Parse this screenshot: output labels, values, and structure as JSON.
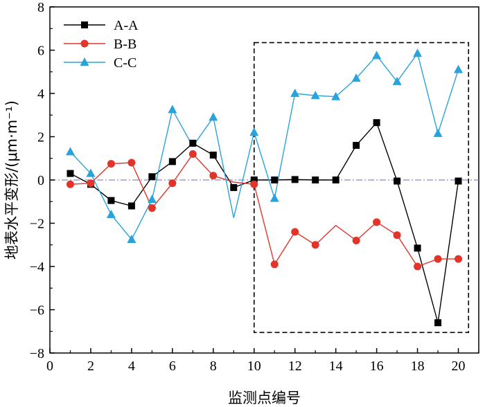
{
  "chart_data": {
    "type": "line",
    "xlabel": "监测点编号",
    "ylabel": "地表水平变形/(μm·m⁻¹)",
    "xlim": [
      0,
      21
    ],
    "ylim": [
      -8,
      8
    ],
    "xticks": [
      0,
      2,
      4,
      6,
      8,
      10,
      12,
      14,
      16,
      18,
      20
    ],
    "yticks": [
      -8,
      -6,
      -4,
      -2,
      0,
      2,
      4,
      6,
      8
    ],
    "xtick_labels": [
      "0",
      "2",
      "4",
      "6",
      "8",
      "10",
      "12",
      "14",
      "16",
      "18",
      "20"
    ],
    "ytick_labels": [
      "−8",
      "−6",
      "−4",
      "−2",
      "0",
      "2",
      "4",
      "6",
      "8"
    ],
    "grid": false,
    "legend_position": "top-left",
    "reference_line": {
      "y": 0,
      "style": "dash-dot",
      "color": "#8888cc"
    },
    "highlight_box": {
      "x": [
        10,
        20.5
      ],
      "y": [
        -7.05,
        6.35
      ],
      "style": "dashed"
    },
    "series": [
      {
        "name": "A-A",
        "color": "#000000",
        "marker": "square",
        "x": [
          1,
          2,
          3,
          4,
          5,
          6,
          7,
          8,
          9,
          10,
          11,
          12,
          13,
          14,
          15,
          16,
          17,
          18,
          19,
          20
        ],
        "y": [
          0.3,
          -0.2,
          -0.95,
          -1.2,
          0.15,
          0.85,
          1.7,
          1.15,
          -0.35,
          0.0,
          0.0,
          0.02,
          0.0,
          0.0,
          1.6,
          2.65,
          -0.05,
          -3.15,
          -6.6,
          -0.05
        ]
      },
      {
        "name": "B-B",
        "color": "#e3342a",
        "marker": "circle",
        "x": [
          1,
          2,
          3,
          4,
          5,
          6,
          7,
          8,
          9,
          10,
          11,
          12,
          13,
          14,
          15,
          16,
          17,
          18,
          19,
          20
        ],
        "y": [
          -0.2,
          -0.15,
          0.75,
          0.8,
          -1.3,
          -0.15,
          1.2,
          0.2,
          -0.1,
          -0.2,
          -3.9,
          -2.4,
          -3.0,
          -2.1,
          -2.8,
          -1.95,
          -2.55,
          -4.0,
          -3.65,
          -3.65
        ],
        "marker_hidden": [
          false,
          false,
          false,
          false,
          false,
          false,
          false,
          false,
          true,
          false,
          false,
          false,
          false,
          true,
          false,
          false,
          false,
          false,
          false,
          false
        ]
      },
      {
        "name": "C-C",
        "color": "#29a3dc",
        "marker": "triangle",
        "x": [
          1,
          2,
          3,
          4,
          5,
          6,
          7,
          8,
          9,
          10,
          11,
          12,
          13,
          14,
          15,
          16,
          17,
          18,
          19,
          20
        ],
        "y": [
          1.3,
          0.3,
          -1.6,
          -2.75,
          -0.9,
          3.25,
          1.55,
          2.9,
          -1.75,
          2.2,
          -0.85,
          4.0,
          3.9,
          3.85,
          4.7,
          5.75,
          4.55,
          5.85,
          2.15,
          5.1
        ],
        "marker_hidden": [
          false,
          false,
          false,
          false,
          false,
          false,
          true,
          false,
          true,
          false,
          false,
          false,
          false,
          false,
          false,
          false,
          false,
          false,
          false,
          false
        ]
      }
    ]
  }
}
